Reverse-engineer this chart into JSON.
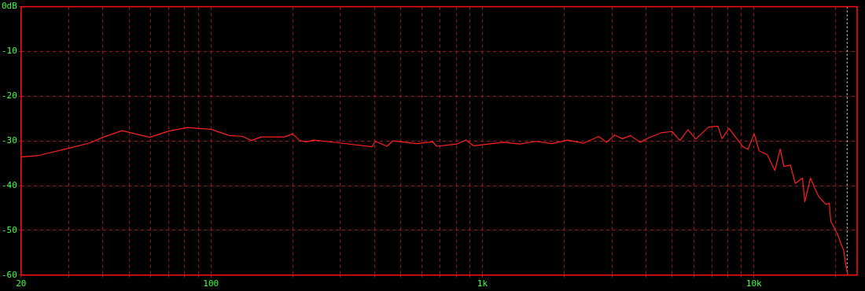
{
  "chart_data": {
    "type": "line",
    "log": "x",
    "grid": true,
    "marker": "none",
    "line_style": "solid",
    "xlim": [
      20,
      24000
    ],
    "ylim": [
      -60,
      0
    ],
    "xticks": [
      20,
      {
        "value": 30,
        "label": null
      },
      {
        "value": 40,
        "label": null
      },
      {
        "value": 50,
        "label": null
      },
      {
        "value": 60,
        "label": null
      },
      {
        "value": 70,
        "label": null
      },
      {
        "value": 80,
        "label": null
      },
      {
        "value": 90,
        "label": null
      },
      100,
      {
        "value": 200,
        "label": null
      },
      {
        "value": 300,
        "label": null
      },
      {
        "value": 400,
        "label": null
      },
      {
        "value": 500,
        "label": null
      },
      {
        "value": 600,
        "label": null
      },
      {
        "value": 700,
        "label": null
      },
      {
        "value": 800,
        "label": null
      },
      {
        "value": 900,
        "label": null
      },
      {
        "value": 1000,
        "label": "1k"
      },
      {
        "value": 2000,
        "label": null
      },
      {
        "value": 3000,
        "label": null
      },
      {
        "value": 4000,
        "label": null
      },
      {
        "value": 5000,
        "label": null
      },
      {
        "value": 6000,
        "label": null
      },
      {
        "value": 7000,
        "label": null
      },
      {
        "value": 8000,
        "label": null
      },
      {
        "value": 9000,
        "label": null
      },
      {
        "value": 10000,
        "label": "10k"
      },
      {
        "value": 20000,
        "label": null
      }
    ],
    "yticks": [
      {
        "value": 0,
        "label": "0dB"
      },
      -10,
      -20,
      -30,
      -40,
      -50,
      -60
    ],
    "ref_lines": [
      {
        "axis": "x",
        "value": 22050,
        "color": "#ffffff",
        "line_style": "dotted"
      }
    ],
    "series": [
      {
        "color": "#ff2020",
        "x": [
          20,
          23,
          30,
          36,
          40,
          47,
          59.5,
          70,
          82,
          90,
          100,
          117,
          131,
          141,
          153,
          187,
          200,
          212,
          224,
          240,
          293,
          392,
          404,
          445,
          467,
          573,
          656,
          679,
          803,
          870,
          928,
          1195,
          1370,
          1570,
          1800,
          2060,
          2360,
          2680,
          2870,
          3070,
          3280,
          3510,
          3810,
          4100,
          4540,
          4990,
          5340,
          5710,
          6110,
          6800,
          7370,
          7630,
          8100,
          8530,
          9120,
          9500,
          10020,
          10450,
          11200,
          11950,
          12500,
          12900,
          13630,
          14200,
          15100,
          15400,
          16150,
          17300,
          18400,
          18950,
          19200,
          20330,
          20900,
          21400,
          21850,
          22200
        ],
        "values": [
          -33.6,
          -33.3,
          -31.6,
          -30.4,
          -29.2,
          -27.7,
          -29.2,
          -27.8,
          -27.0,
          -27.2,
          -27.4,
          -28.8,
          -29.0,
          -29.9,
          -29.1,
          -29.1,
          -28.4,
          -29.9,
          -30.2,
          -29.8,
          -30.4,
          -31.3,
          -30.1,
          -31.2,
          -30.0,
          -30.6,
          -30.2,
          -31.2,
          -30.7,
          -29.8,
          -31.1,
          -30.3,
          -30.7,
          -30.1,
          -30.6,
          -29.8,
          -30.5,
          -29.0,
          -30.3,
          -28.7,
          -29.5,
          -28.8,
          -30.3,
          -29.3,
          -28.2,
          -27.9,
          -29.9,
          -27.5,
          -29.6,
          -26.9,
          -26.7,
          -29.5,
          -27.2,
          -29.0,
          -31.3,
          -31.9,
          -28.4,
          -32.2,
          -33.1,
          -36.6,
          -31.8,
          -35.7,
          -35.4,
          -39.5,
          -38.3,
          -43.6,
          -38.3,
          -42.4,
          -44.2,
          -43.9,
          -48.0,
          -50.9,
          -52.9,
          -54.4,
          -58.2,
          -59.8
        ]
      }
    ]
  }
}
